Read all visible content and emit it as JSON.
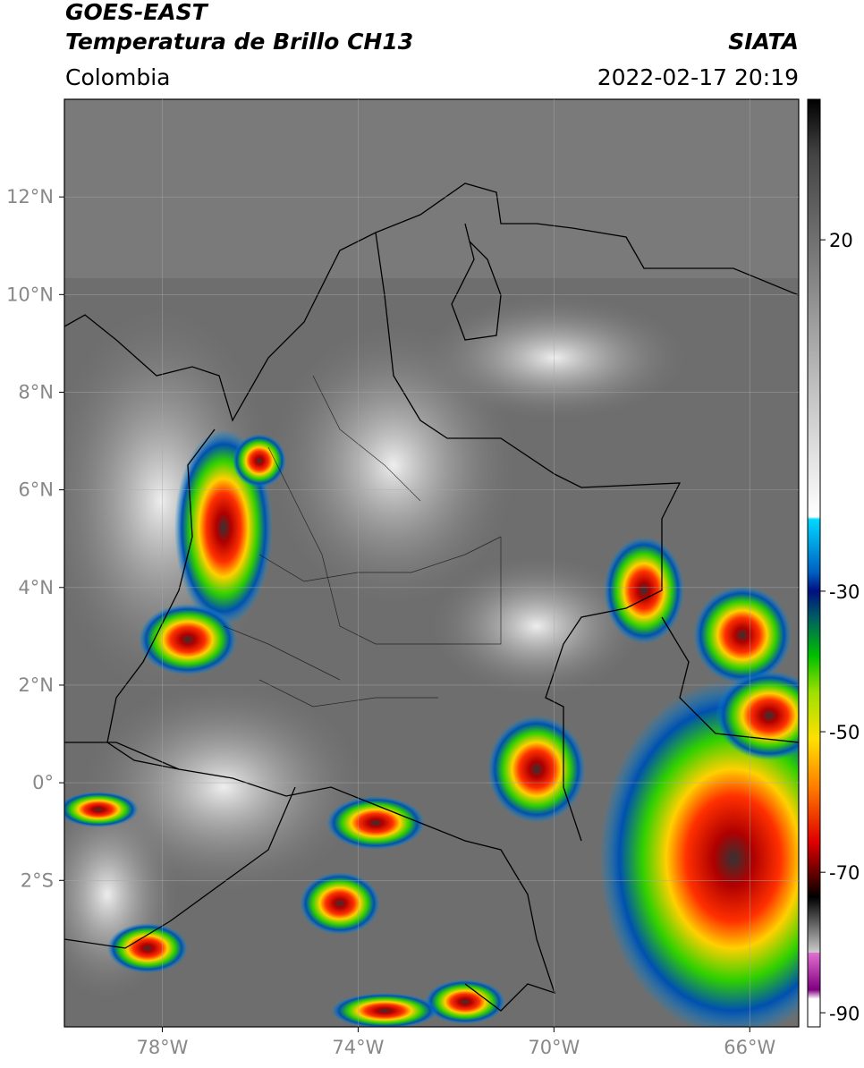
{
  "header": {
    "satellite": "GOES-EAST",
    "product": "Temperatura de Brillo CH13",
    "region": "Colombia",
    "agency": "SIATA",
    "datetime": "2022-02-17 20:19"
  },
  "map": {
    "xlim": [
      -80,
      -65
    ],
    "ylim": [
      -5,
      14
    ],
    "xticks": [
      {
        "value": -78,
        "label": "78°W"
      },
      {
        "value": -74,
        "label": "74°W"
      },
      {
        "value": -70,
        "label": "70°W"
      },
      {
        "value": -66,
        "label": "66°W"
      }
    ],
    "yticks": [
      {
        "value": 12,
        "label": "12°N"
      },
      {
        "value": 10,
        "label": "10°N"
      },
      {
        "value": 8,
        "label": "8°N"
      },
      {
        "value": 6,
        "label": "6°N"
      },
      {
        "value": 4,
        "label": "4°N"
      },
      {
        "value": 2,
        "label": "2°N"
      },
      {
        "value": 0,
        "label": "0°"
      },
      {
        "value": -2,
        "label": "2°S"
      }
    ]
  },
  "colorbar": {
    "lim": [
      -92,
      40
    ],
    "ticks": [
      20,
      -30,
      -50,
      -70,
      -90
    ]
  }
}
